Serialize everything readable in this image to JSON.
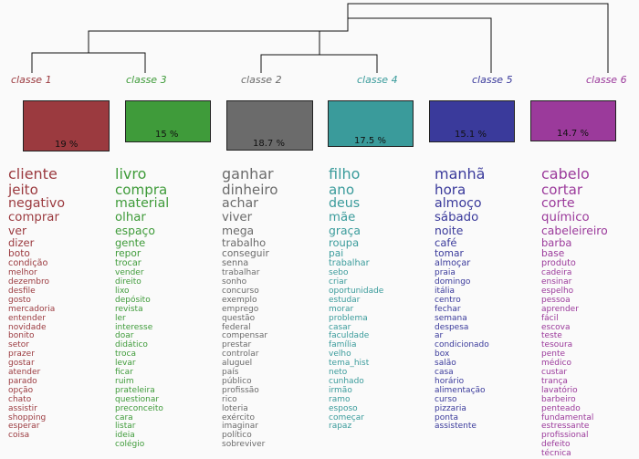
{
  "classes": [
    {
      "label": "classe 1",
      "pct": "19 %",
      "color": "#9b3a3f",
      "words": [
        "cliente",
        "jeito",
        "negativo",
        "comprar",
        "ver",
        "dizer",
        "boto",
        "condição",
        "melhor",
        "dezembro",
        "desfile",
        "gosto",
        "mercadoria",
        "entender",
        "novidade",
        "bonito",
        "setor",
        "prazer",
        "gostar",
        "atender",
        "parado",
        "opção",
        "chato",
        "assistir",
        "shopping",
        "esperar",
        "coisa"
      ]
    },
    {
      "label": "classe 3",
      "pct": "15 %",
      "color": "#3f9b3a",
      "words": [
        "livro",
        "compra",
        "material",
        "olhar",
        "espaço",
        "gente",
        "repor",
        "trocar",
        "vender",
        "direito",
        "lixo",
        "depósito",
        "revista",
        "ler",
        "interesse",
        "doar",
        "didático",
        "troca",
        "levar",
        "ficar",
        "ruim",
        "prateleira",
        "questionar",
        "preconceito",
        "cara",
        "listar",
        "ideia",
        "colégio"
      ]
    },
    {
      "label": "classe 2",
      "pct": "18.7 %",
      "color": "#6b6b6b",
      "words": [
        "ganhar",
        "dinheiro",
        "achar",
        "viver",
        "mega",
        "trabalho",
        "conseguir",
        "senna",
        "trabalhar",
        "sonho",
        "concurso",
        "exemplo",
        "emprego",
        "questão",
        "federal",
        "compensar",
        "prestar",
        "controlar",
        "aluguel",
        "país",
        "público",
        "profissão",
        "rico",
        "loteria",
        "exército",
        "imaginar",
        "político",
        "sobreviver"
      ]
    },
    {
      "label": "classe 4",
      "pct": "17.5 %",
      "color": "#3a9b9b",
      "words": [
        "filho",
        "ano",
        "deus",
        "mãe",
        "graça",
        "roupa",
        "pai",
        "trabalhar",
        "sebo",
        "criar",
        "oportunidade",
        "estudar",
        "morar",
        "problema",
        "casar",
        "faculdade",
        "família",
        "velho",
        "tema_hist",
        "neto",
        "cunhado",
        "irmão",
        "ramo",
        "esposo",
        "começar",
        "rapaz"
      ]
    },
    {
      "label": "classe 5",
      "pct": "15.1 %",
      "color": "#3a3a9b",
      "words": [
        "manhã",
        "hora",
        "almoço",
        "sábado",
        "noite",
        "café",
        "tomar",
        "almoçar",
        "praia",
        "domingo",
        "itália",
        "centro",
        "fechar",
        "semana",
        "despesa",
        "ar",
        "condicionado",
        "box",
        "salão",
        "casa",
        "horário",
        "alimentação",
        "curso",
        "pizzaria",
        "ponta",
        "assistente"
      ]
    },
    {
      "label": "classe 6",
      "pct": "14.7 %",
      "color": "#9b3a9b",
      "words": [
        "cabelo",
        "cortar",
        "corte",
        "químico",
        "cabeleireiro",
        "barba",
        "base",
        "produto",
        "cadeira",
        "ensinar",
        "espelho",
        "pessoa",
        "aprender",
        "fácil",
        "escova",
        "teste",
        "tesoura",
        "pente",
        "médico",
        "custar",
        "trança",
        "lavatório",
        "barbeiro",
        "penteado",
        "fundamental",
        "estressante",
        "profissional",
        "defeito",
        "técnica"
      ]
    }
  ]
}
